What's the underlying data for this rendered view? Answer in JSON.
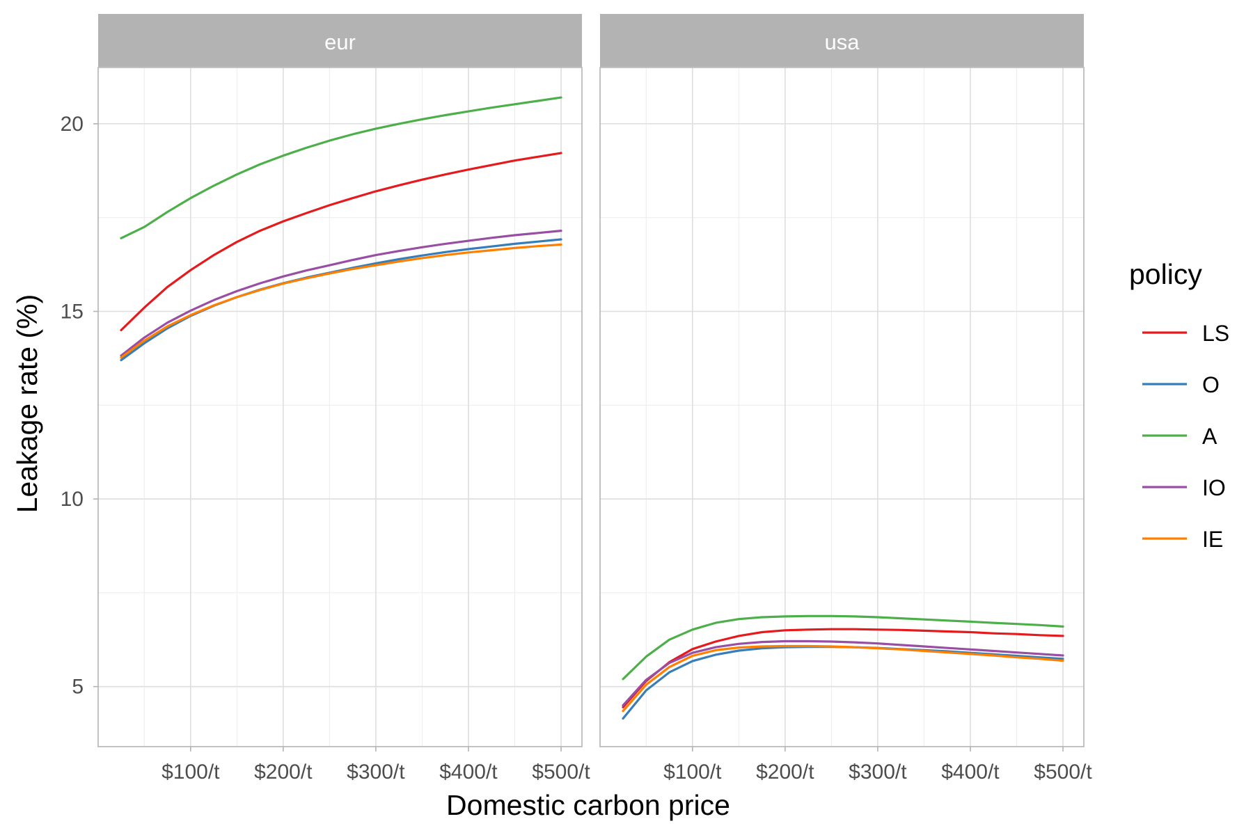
{
  "chart_data": {
    "type": "line",
    "xlabel": "Domestic carbon price",
    "ylabel": "Leakage rate (%)",
    "legend_title": "policy",
    "legend_position": "right",
    "grid": true,
    "xlim": [
      25,
      500
    ],
    "ylim": [
      3.4,
      21.5
    ],
    "x_ticks": [
      {
        "value": 100,
        "label": "$100/t"
      },
      {
        "value": 200,
        "label": "$200/t"
      },
      {
        "value": 300,
        "label": "$300/t"
      },
      {
        "value": 400,
        "label": "$400/t"
      },
      {
        "value": 500,
        "label": "$500/t"
      }
    ],
    "y_ticks": [
      {
        "value": 5,
        "label": "5"
      },
      {
        "value": 10,
        "label": "10"
      },
      {
        "value": 15,
        "label": "15"
      },
      {
        "value": 20,
        "label": "20"
      }
    ],
    "x": [
      25,
      50,
      75,
      100,
      125,
      150,
      175,
      200,
      225,
      250,
      275,
      300,
      325,
      350,
      375,
      400,
      425,
      450,
      475,
      500
    ],
    "legend": [
      {
        "name": "LS",
        "color": "#E41A1C"
      },
      {
        "name": "O",
        "color": "#377EB8"
      },
      {
        "name": "A",
        "color": "#4DAF4A"
      },
      {
        "name": "IO",
        "color": "#984EA3"
      },
      {
        "name": "IE",
        "color": "#FF7F00"
      }
    ],
    "facets": [
      {
        "label": "eur",
        "series": [
          {
            "name": "LS",
            "color": "#E41A1C",
            "values": [
              14.5,
              15.1,
              15.65,
              16.1,
              16.5,
              16.85,
              17.15,
              17.4,
              17.62,
              17.83,
              18.02,
              18.2,
              18.36,
              18.51,
              18.65,
              18.78,
              18.9,
              19.02,
              19.12,
              19.22
            ]
          },
          {
            "name": "O",
            "color": "#377EB8",
            "values": [
              13.7,
              14.15,
              14.55,
              14.88,
              15.15,
              15.38,
              15.58,
              15.75,
              15.9,
              16.03,
              16.16,
              16.28,
              16.39,
              16.49,
              16.58,
              16.66,
              16.73,
              16.8,
              16.86,
              16.92
            ]
          },
          {
            "name": "A",
            "color": "#4DAF4A",
            "values": [
              16.95,
              17.25,
              17.65,
              18.02,
              18.35,
              18.65,
              18.92,
              19.15,
              19.36,
              19.55,
              19.72,
              19.87,
              20.0,
              20.12,
              20.23,
              20.33,
              20.43,
              20.52,
              20.61,
              20.7
            ]
          },
          {
            "name": "IO",
            "color": "#984EA3",
            "values": [
              13.82,
              14.3,
              14.7,
              15.02,
              15.3,
              15.54,
              15.75,
              15.93,
              16.09,
              16.23,
              16.37,
              16.5,
              16.61,
              16.71,
              16.8,
              16.88,
              16.96,
              17.03,
              17.09,
              17.15
            ]
          },
          {
            "name": "IE",
            "color": "#FF7F00",
            "values": [
              13.77,
              14.22,
              14.6,
              14.9,
              15.16,
              15.38,
              15.57,
              15.74,
              15.88,
              16.01,
              16.13,
              16.23,
              16.33,
              16.42,
              16.5,
              16.57,
              16.63,
              16.69,
              16.74,
              16.78
            ]
          }
        ]
      },
      {
        "label": "usa",
        "series": [
          {
            "name": "LS",
            "color": "#E41A1C",
            "values": [
              4.45,
              5.15,
              5.65,
              6.0,
              6.2,
              6.35,
              6.45,
              6.5,
              6.52,
              6.53,
              6.53,
              6.52,
              6.51,
              6.49,
              6.47,
              6.45,
              6.42,
              6.4,
              6.37,
              6.35
            ]
          },
          {
            "name": "O",
            "color": "#377EB8",
            "values": [
              4.15,
              4.9,
              5.38,
              5.68,
              5.85,
              5.96,
              6.02,
              6.05,
              6.06,
              6.06,
              6.05,
              6.03,
              6.0,
              5.97,
              5.94,
              5.9,
              5.86,
              5.82,
              5.78,
              5.74
            ]
          },
          {
            "name": "A",
            "color": "#4DAF4A",
            "values": [
              5.2,
              5.8,
              6.25,
              6.52,
              6.7,
              6.8,
              6.85,
              6.87,
              6.88,
              6.88,
              6.87,
              6.85,
              6.82,
              6.79,
              6.76,
              6.73,
              6.7,
              6.67,
              6.64,
              6.6
            ]
          },
          {
            "name": "IO",
            "color": "#984EA3",
            "values": [
              4.5,
              5.18,
              5.63,
              5.9,
              6.05,
              6.14,
              6.19,
              6.21,
              6.21,
              6.2,
              6.18,
              6.15,
              6.11,
              6.07,
              6.03,
              5.99,
              5.95,
              5.91,
              5.87,
              5.83
            ]
          },
          {
            "name": "IE",
            "color": "#FF7F00",
            "values": [
              4.35,
              5.05,
              5.52,
              5.82,
              5.97,
              6.04,
              6.07,
              6.08,
              6.08,
              6.07,
              6.05,
              6.02,
              5.99,
              5.95,
              5.91,
              5.87,
              5.83,
              5.78,
              5.74,
              5.69
            ]
          }
        ]
      }
    ]
  }
}
